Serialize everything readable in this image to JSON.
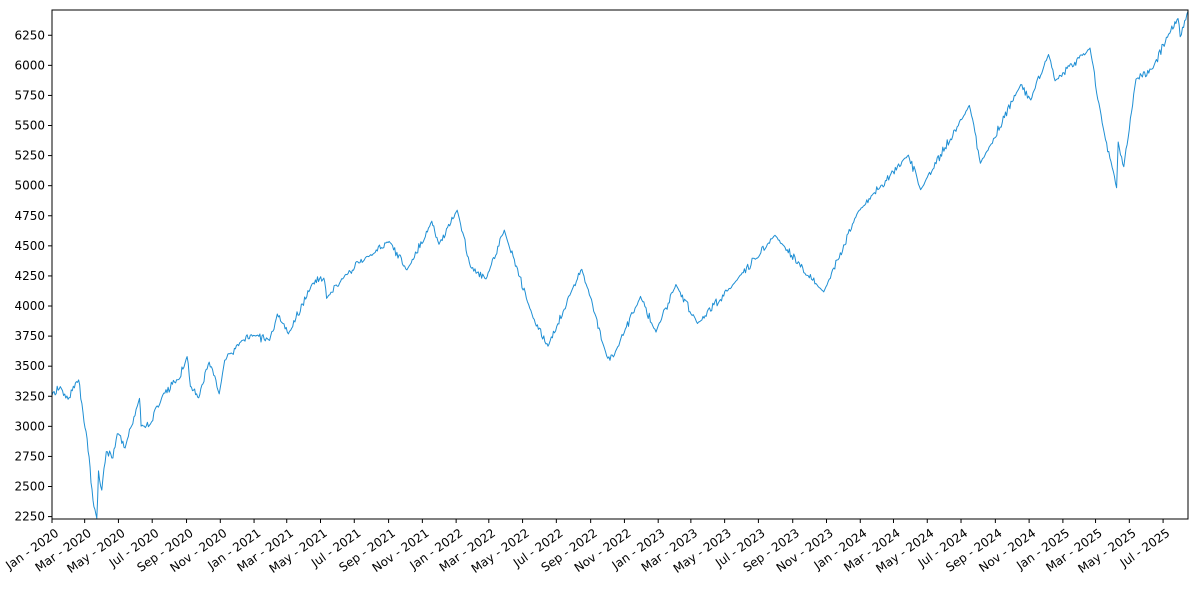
{
  "chart_data": {
    "type": "line",
    "title": "",
    "xlabel": "",
    "ylabel": "",
    "grid": false,
    "xlim": [
      "2020-01-02",
      "2025-08-15"
    ],
    "ylim": [
      2230,
      6460
    ],
    "x_ticks": [
      {
        "date": "2020-01-01",
        "label": "Jan - 2020"
      },
      {
        "date": "2020-03-01",
        "label": "Mar - 2020"
      },
      {
        "date": "2020-05-01",
        "label": "May - 2020"
      },
      {
        "date": "2020-07-01",
        "label": "Jul - 2020"
      },
      {
        "date": "2020-09-01",
        "label": "Sep - 2020"
      },
      {
        "date": "2020-11-01",
        "label": "Nov - 2020"
      },
      {
        "date": "2021-01-01",
        "label": "Jan - 2021"
      },
      {
        "date": "2021-03-01",
        "label": "Mar - 2021"
      },
      {
        "date": "2021-05-01",
        "label": "May - 2021"
      },
      {
        "date": "2021-07-01",
        "label": "Jul - 2021"
      },
      {
        "date": "2021-09-01",
        "label": "Sep - 2021"
      },
      {
        "date": "2021-11-01",
        "label": "Nov - 2021"
      },
      {
        "date": "2022-01-01",
        "label": "Jan - 2022"
      },
      {
        "date": "2022-03-01",
        "label": "Mar - 2022"
      },
      {
        "date": "2022-05-01",
        "label": "May - 2022"
      },
      {
        "date": "2022-07-01",
        "label": "Jul - 2022"
      },
      {
        "date": "2022-09-01",
        "label": "Sep - 2022"
      },
      {
        "date": "2022-11-01",
        "label": "Nov - 2022"
      },
      {
        "date": "2023-01-01",
        "label": "Jan - 2023"
      },
      {
        "date": "2023-03-01",
        "label": "Mar - 2023"
      },
      {
        "date": "2023-05-01",
        "label": "May - 2023"
      },
      {
        "date": "2023-07-01",
        "label": "Jul - 2023"
      },
      {
        "date": "2023-09-01",
        "label": "Sep - 2023"
      },
      {
        "date": "2023-11-01",
        "label": "Nov - 2023"
      },
      {
        "date": "2024-01-01",
        "label": "Jan - 2024"
      },
      {
        "date": "2024-03-01",
        "label": "Mar - 2024"
      },
      {
        "date": "2024-05-01",
        "label": "May - 2024"
      },
      {
        "date": "2024-07-01",
        "label": "Jul - 2024"
      },
      {
        "date": "2024-09-01",
        "label": "Sep - 2024"
      },
      {
        "date": "2024-11-01",
        "label": "Nov - 2024"
      },
      {
        "date": "2025-01-01",
        "label": "Jan - 2025"
      },
      {
        "date": "2025-03-01",
        "label": "Mar - 2025"
      },
      {
        "date": "2025-05-01",
        "label": "May - 2025"
      },
      {
        "date": "2025-07-01",
        "label": "Jul - 2025"
      }
    ],
    "y_ticks": [
      2250,
      2500,
      2750,
      3000,
      3250,
      3500,
      3750,
      4000,
      4250,
      4500,
      4750,
      5000,
      5250,
      5500,
      5750,
      6000,
      6250
    ],
    "series": [
      {
        "color": "#1f8fd4",
        "points": [
          [
            "2020-01-02",
            3258
          ],
          [
            "2020-01-17",
            3330
          ],
          [
            "2020-01-31",
            3225
          ],
          [
            "2020-02-19",
            3386
          ],
          [
            "2020-02-27",
            3116
          ],
          [
            "2020-03-09",
            2746
          ],
          [
            "2020-03-16",
            2386
          ],
          [
            "2020-03-23",
            2237
          ],
          [
            "2020-03-26",
            2630
          ],
          [
            "2020-04-01",
            2470
          ],
          [
            "2020-04-09",
            2790
          ],
          [
            "2020-04-21",
            2737
          ],
          [
            "2020-04-29",
            2939
          ],
          [
            "2020-05-13",
            2820
          ],
          [
            "2020-06-08",
            3232
          ],
          [
            "2020-06-11",
            3002
          ],
          [
            "2020-06-26",
            3009
          ],
          [
            "2020-07-22",
            3276
          ],
          [
            "2020-08-18",
            3389
          ],
          [
            "2020-09-02",
            3580
          ],
          [
            "2020-09-08",
            3331
          ],
          [
            "2020-09-23",
            3237
          ],
          [
            "2020-10-12",
            3534
          ],
          [
            "2020-10-30",
            3270
          ],
          [
            "2020-11-09",
            3550
          ],
          [
            "2020-12-08",
            3702
          ],
          [
            "2020-12-31",
            3756
          ],
          [
            "2021-01-29",
            3714
          ],
          [
            "2021-02-12",
            3934
          ],
          [
            "2021-03-04",
            3768
          ],
          [
            "2021-04-16",
            4185
          ],
          [
            "2021-05-07",
            4232
          ],
          [
            "2021-05-12",
            4063
          ],
          [
            "2021-06-14",
            4255
          ],
          [
            "2021-07-29",
            4419
          ],
          [
            "2021-09-02",
            4537
          ],
          [
            "2021-10-04",
            4300
          ],
          [
            "2021-11-18",
            4705
          ],
          [
            "2021-12-01",
            4513
          ],
          [
            "2022-01-03",
            4796
          ],
          [
            "2022-01-27",
            4326
          ],
          [
            "2022-02-24",
            4225
          ],
          [
            "2022-03-29",
            4631
          ],
          [
            "2022-05-20",
            3901
          ],
          [
            "2022-06-16",
            3666
          ],
          [
            "2022-07-29",
            4130
          ],
          [
            "2022-08-16",
            4305
          ],
          [
            "2022-09-30",
            3585
          ],
          [
            "2022-10-12",
            3577
          ],
          [
            "2022-11-30",
            4080
          ],
          [
            "2022-12-28",
            3783
          ],
          [
            "2023-02-02",
            4179
          ],
          [
            "2023-03-13",
            3855
          ],
          [
            "2023-05-19",
            4192
          ],
          [
            "2023-07-31",
            4588
          ],
          [
            "2023-10-27",
            4117
          ],
          [
            "2023-12-28",
            4783
          ],
          [
            "2024-03-28",
            5254
          ],
          [
            "2024-04-19",
            4967
          ],
          [
            "2024-07-16",
            5667
          ],
          [
            "2024-08-05",
            5186
          ],
          [
            "2024-10-17",
            5841
          ],
          [
            "2024-11-04",
            5712
          ],
          [
            "2024-12-06",
            6090
          ],
          [
            "2024-12-18",
            5872
          ],
          [
            "2025-02-19",
            6144
          ],
          [
            "2025-03-13",
            5521
          ],
          [
            "2025-04-08",
            4982
          ],
          [
            "2025-04-11",
            5363
          ],
          [
            "2025-04-21",
            5158
          ],
          [
            "2025-05-13",
            5886
          ],
          [
            "2025-06-13",
            5977
          ],
          [
            "2025-07-11",
            6260
          ],
          [
            "2025-07-28",
            6389
          ],
          [
            "2025-08-01",
            6238
          ],
          [
            "2025-08-15",
            6449
          ]
        ]
      }
    ]
  }
}
